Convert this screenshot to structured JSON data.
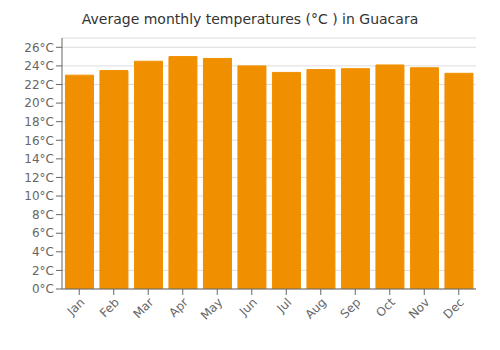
{
  "chart_data": {
    "type": "bar",
    "title": "Average monthly temperatures (°C ) in Guacara",
    "categories": [
      "Jan",
      "Feb",
      "Mar",
      "Apr",
      "May",
      "Jun",
      "Jul",
      "Aug",
      "Sep",
      "Oct",
      "Nov",
      "Dec"
    ],
    "values": [
      23.0,
      23.5,
      24.5,
      25.0,
      24.8,
      24.0,
      23.3,
      23.6,
      23.7,
      24.1,
      23.8,
      23.2
    ],
    "color": "#F09000",
    "ylim": [
      0,
      27
    ],
    "yticks": [
      {
        "value": 0,
        "label": "0°C"
      },
      {
        "value": 2,
        "label": "2°C"
      },
      {
        "value": 4,
        "label": "4°C"
      },
      {
        "value": 6,
        "label": "6°C"
      },
      {
        "value": 8,
        "label": "8°C"
      },
      {
        "value": 10,
        "label": "10°C"
      },
      {
        "value": 12,
        "label": "12°C"
      },
      {
        "value": 14,
        "label": "14°C"
      },
      {
        "value": 16,
        "label": "16°C"
      },
      {
        "value": 18,
        "label": "18°C"
      },
      {
        "value": 20,
        "label": "20°C"
      },
      {
        "value": 22,
        "label": "22°C"
      },
      {
        "value": 24,
        "label": "24°C"
      },
      {
        "value": 26,
        "label": "26°C"
      }
    ],
    "grid": true
  }
}
